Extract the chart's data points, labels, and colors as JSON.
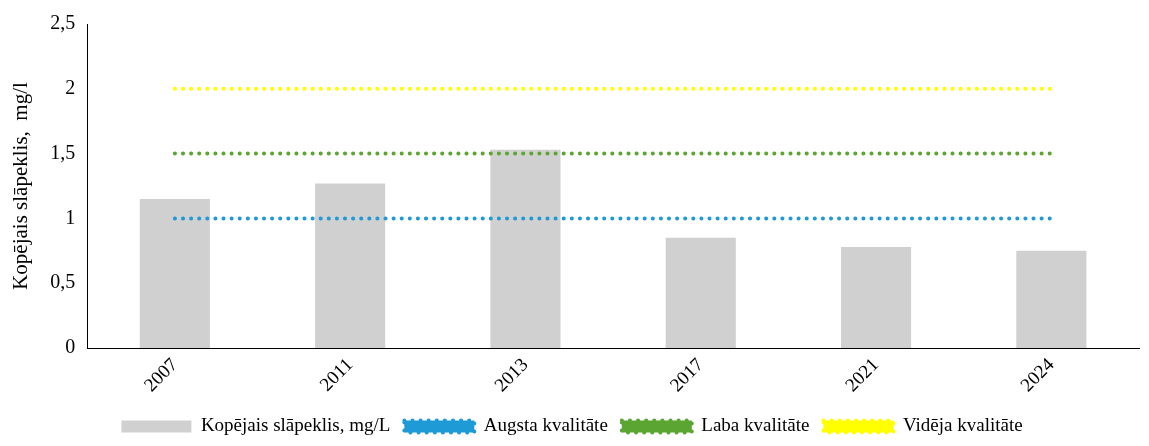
{
  "chart_data": {
    "type": "bar",
    "ylabel": "Kopējais slāpeklis,  mg/l",
    "categories": [
      "2007",
      "2011",
      "2013",
      "2017",
      "2021",
      "2024"
    ],
    "series": [
      {
        "name": "Kopējais slāpeklis, mg/L",
        "color": "#d0d0d0",
        "values": [
          1.15,
          1.27,
          1.53,
          0.85,
          0.78,
          0.75
        ]
      },
      {
        "name": "Augsta kvalitāte",
        "type": "line",
        "line_style": "dotted",
        "color": "#1e9ad6",
        "values": [
          1,
          1,
          1,
          1,
          1,
          1
        ]
      },
      {
        "name": "Laba kvalitāte",
        "type": "line",
        "line_style": "dotted",
        "color": "#5ba533",
        "values": [
          1.5,
          1.5,
          1.5,
          1.5,
          1.5,
          1.5
        ]
      },
      {
        "name": "Vidēja kvalitāte",
        "type": "line",
        "line_style": "dotted",
        "color": "#ffff00",
        "values": [
          2,
          2,
          2,
          2,
          2,
          2
        ]
      }
    ],
    "ylim": [
      0,
      2.5
    ],
    "yticks": [
      0,
      {
        "value": 0.5,
        "label": "0,5"
      },
      1,
      {
        "value": 1.5,
        "label": "1,5"
      },
      2,
      {
        "value": 2.5,
        "label": "2,5"
      }
    ],
    "grid": false,
    "legend": "bottom",
    "marker": "none"
  }
}
